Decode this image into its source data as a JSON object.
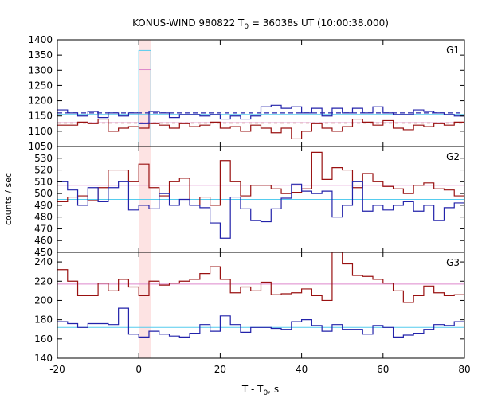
{
  "chart_data": {
    "type": "line",
    "title": "KONUS-WIND 980822 T",
    "title_sub": "0",
    "title_rest": " = 36038s UT (10:00:38.000)",
    "xlabel": "T - T",
    "xlabel_sub": "0",
    "xlabel_rest": ", s",
    "ylabel": "counts / sec",
    "xlim": [
      -20,
      80
    ],
    "x_ticks": [
      -20,
      0,
      20,
      40,
      60,
      80
    ],
    "x_tick_labels": [
      "-20",
      "0",
      "20",
      "40",
      "60",
      "80"
    ],
    "highlight": {
      "x0": 0,
      "x1": 2.944,
      "color": "#fde3e3"
    },
    "colors": {
      "bg_series": "#2222aa",
      "src_series": "#991111",
      "bg_level": "#55ccee",
      "src_level": "#dd88cc"
    },
    "panels": [
      {
        "name": "G1",
        "ylim": [
          1050,
          1400
        ],
        "y_ticks": [
          1050,
          1100,
          1150,
          1200,
          1250,
          1300,
          1350,
          1400
        ],
        "y_tick_labels": [
          "1050",
          "1100",
          "1150",
          "1200",
          "1250",
          "1300",
          "1350",
          "1400"
        ],
        "series_bg": [
          1170,
          1160,
          1150,
          1165,
          1145,
          1160,
          1150,
          1160,
          1125,
          1165,
          1160,
          1145,
          1155,
          1155,
          1150,
          1155,
          1140,
          1150,
          1140,
          1150,
          1180,
          1185,
          1175,
          1180,
          1160,
          1175,
          1150,
          1175,
          1160,
          1175,
          1160,
          1180,
          1160,
          1155,
          1155,
          1170,
          1165,
          1160,
          1155,
          1150
        ],
        "series_src": [
          1120,
          1120,
          1130,
          1125,
          1140,
          1100,
          1110,
          1115,
          1110,
          1125,
          1120,
          1110,
          1125,
          1115,
          1120,
          1130,
          1110,
          1115,
          1100,
          1120,
          1110,
          1095,
          1110,
          1075,
          1100,
          1125,
          1110,
          1100,
          1115,
          1140,
          1130,
          1120,
          1135,
          1110,
          1105,
          1120,
          1115,
          1125,
          1120,
          1130
        ],
        "level_bg": 1155,
        "level_src": 1128,
        "dashed_bg": 1160,
        "dashed_src": 1127,
        "spike": {
          "x0": 0,
          "x1": 2.944,
          "bg": 1365,
          "src": 1302
        }
      },
      {
        "name": "G2",
        "ylim": [
          450,
          540
        ],
        "y_ticks": [
          450,
          460,
          470,
          480,
          490,
          500,
          510,
          520,
          530
        ],
        "y_tick_labels": [
          "450",
          "460",
          "470",
          "480",
          "490",
          "500",
          "510",
          "520",
          "530"
        ],
        "series_bg": [
          510,
          503,
          490,
          505,
          493,
          505,
          510,
          486,
          490,
          487,
          500,
          490,
          495,
          490,
          488,
          475,
          462,
          497,
          487,
          477,
          476,
          487,
          496,
          508,
          502,
          500,
          502,
          480,
          490,
          510,
          485,
          490,
          486,
          490,
          493,
          485,
          490,
          477,
          488,
          492
        ],
        "series_src": [
          493,
          497,
          498,
          494,
          505,
          520,
          520,
          510,
          525,
          505,
          498,
          510,
          513,
          490,
          497,
          490,
          528,
          510,
          498,
          507,
          507,
          504,
          500,
          501,
          504,
          535,
          512,
          522,
          520,
          505,
          517,
          510,
          506,
          504,
          500,
          507,
          509,
          504,
          503,
          498
        ],
        "level_bg": 495,
        "level_src": 507
      },
      {
        "name": "G3",
        "ylim": [
          140,
          250
        ],
        "y_ticks": [
          140,
          160,
          180,
          200,
          220,
          240
        ],
        "y_tick_labels": [
          "140",
          "160",
          "180",
          "200",
          "220",
          "240"
        ],
        "series_bg": [
          178,
          176,
          172,
          176,
          176,
          175,
          192,
          165,
          162,
          168,
          165,
          163,
          162,
          166,
          175,
          168,
          184,
          175,
          167,
          172,
          172,
          171,
          170,
          178,
          180,
          174,
          168,
          175,
          170,
          170,
          165,
          174,
          172,
          162,
          164,
          166,
          170,
          175,
          174,
          178
        ],
        "series_src": [
          232,
          220,
          205,
          205,
          218,
          210,
          222,
          214,
          205,
          220,
          216,
          218,
          220,
          222,
          228,
          235,
          222,
          208,
          214,
          210,
          219,
          206,
          207,
          208,
          212,
          205,
          200,
          250,
          238,
          226,
          225,
          222,
          218,
          210,
          198,
          205,
          215,
          208,
          205,
          206
        ],
        "level_bg": 172,
        "level_src": 217
      }
    ]
  }
}
